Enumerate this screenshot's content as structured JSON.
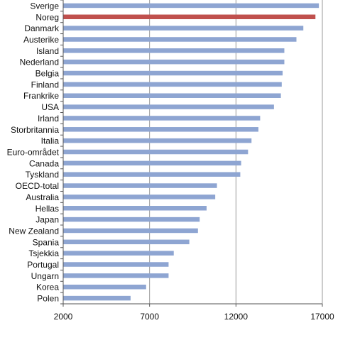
{
  "chart_data": {
    "type": "bar",
    "orientation": "horizontal",
    "title": "",
    "xlabel": "",
    "ylabel": "",
    "xlim": [
      2000,
      17000
    ],
    "x_ticks": [
      2000,
      7000,
      12000,
      17000
    ],
    "x_tick_labels": [
      "2000",
      "7000",
      "12000",
      "17000"
    ],
    "grid": "vertical lines at x ticks",
    "legend": "none",
    "categories": [
      "Sverige",
      "Noreg",
      "Danmark",
      "Austerike",
      "Island",
      "Nederland",
      "Belgia",
      "Finland",
      "Frankrike",
      "USA",
      "Irland",
      "Storbritannia",
      "Italia",
      "Euro-området",
      "Canada",
      "Tyskland",
      "OECD-total",
      "Australia",
      "Hellas",
      "Japan",
      "New Zealand",
      "Spania",
      "Tsjekkia",
      "Portugal",
      "Ungarn",
      "Korea",
      "Polen"
    ],
    "values": [
      16800,
      16600,
      15900,
      15500,
      14800,
      14800,
      14700,
      14650,
      14600,
      14200,
      13400,
      13300,
      12900,
      12700,
      12300,
      12250,
      10900,
      10800,
      10300,
      9900,
      9800,
      9300,
      8400,
      8100,
      8100,
      6800,
      5900
    ],
    "highlight": "Noreg",
    "colors": {
      "bar": "#8EA5D2",
      "highlight": "#C0504D",
      "grid": "#999999",
      "axis": "#555555",
      "text": "#111111"
    }
  }
}
